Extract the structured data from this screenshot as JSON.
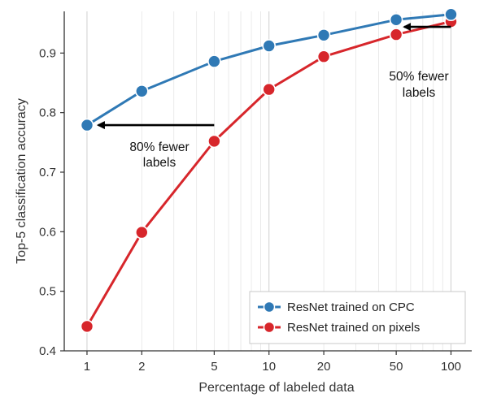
{
  "chart_data": {
    "type": "line",
    "xscale": "log",
    "x": [
      1,
      2,
      5,
      10,
      20,
      50,
      100
    ],
    "x_tick_labels": [
      "1",
      "2",
      "5",
      "10",
      "20",
      "50",
      "100"
    ],
    "y_ticks": [
      0.4,
      0.5,
      0.6,
      0.7,
      0.8,
      0.9
    ],
    "y_tick_labels": [
      "0.4",
      "0.5",
      "0.6",
      "0.7",
      "0.8",
      "0.9"
    ],
    "ylim": [
      0.4,
      0.97
    ],
    "xlim": [
      0.75,
      130
    ],
    "xlabel": "Percentage of labeled data",
    "ylabel": "Top-5 classification accuracy",
    "grid": "vertical log minor lines",
    "legend_position": "bottom-right",
    "series": [
      {
        "name": "ResNet trained on CPC",
        "color": "#2f79b5",
        "values": [
          0.779,
          0.836,
          0.886,
          0.912,
          0.93,
          0.956,
          0.965
        ]
      },
      {
        "name": "ResNet trained on pixels",
        "color": "#d7262b",
        "values": [
          0.441,
          0.599,
          0.752,
          0.839,
          0.894,
          0.931,
          0.953
        ]
      }
    ],
    "annotations": [
      {
        "lines": [
          "80% fewer",
          "labels"
        ],
        "arrow_from_x": 5,
        "arrow_to_x": 1,
        "arrow_y": 0.779
      },
      {
        "lines": [
          "50% fewer",
          "labels"
        ],
        "arrow_from_x": 100,
        "arrow_to_x": 50,
        "arrow_y": 0.944
      }
    ]
  }
}
